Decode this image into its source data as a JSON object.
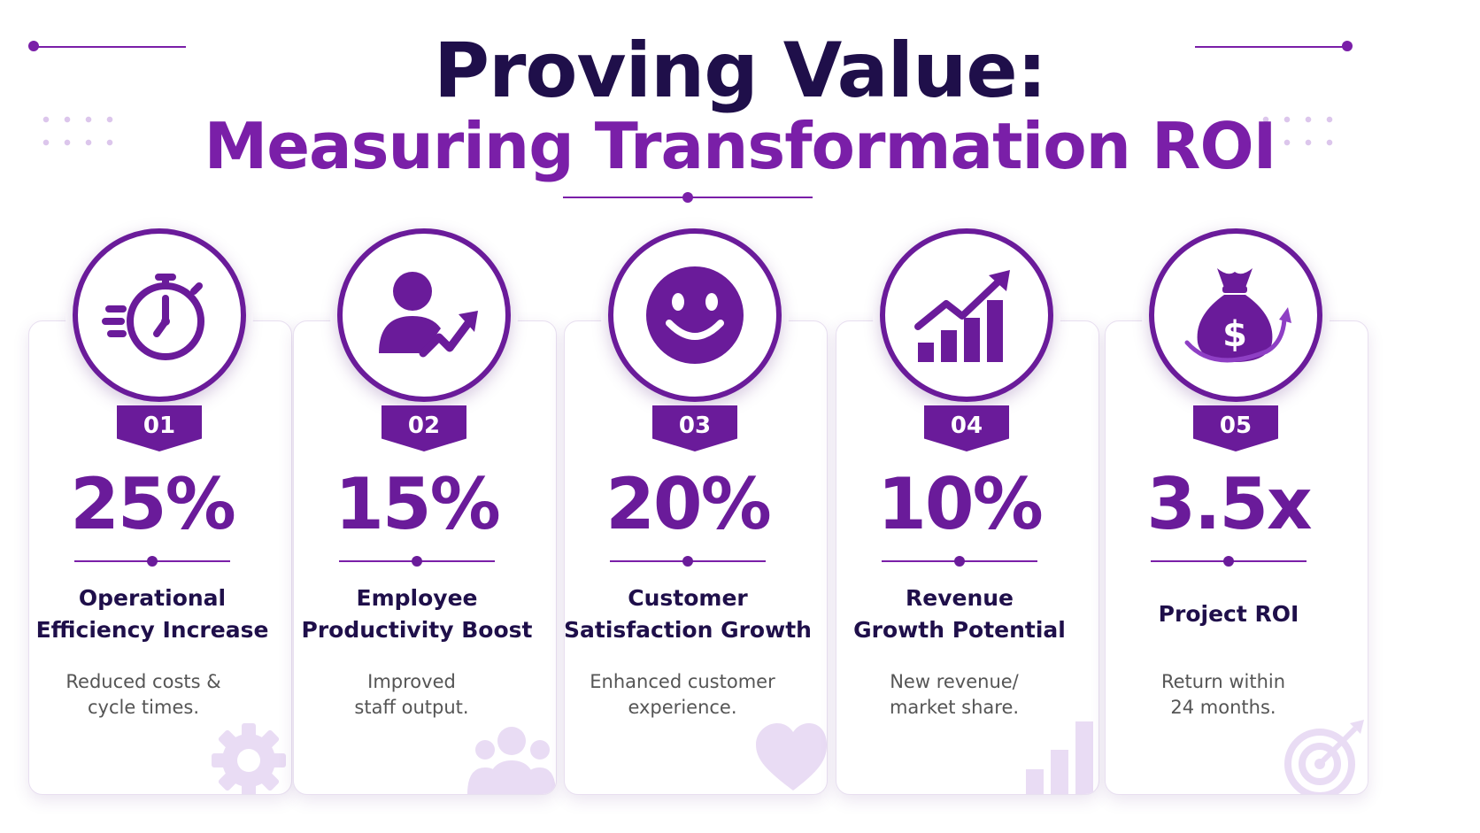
{
  "header": {
    "title_line1": "Proving Value:",
    "title_line2": "Measuring Transformation ROI"
  },
  "colors": {
    "primary": "#6a1b9a",
    "accent": "#7a1fa8",
    "dark": "#1f0f4a",
    "muted_icon": "#e9dcf4"
  },
  "cards": [
    {
      "number": "01",
      "metric": "25%",
      "label_line1": "Operational",
      "label_line2": "Efficiency Increase",
      "desc_line1": "Reduced costs &",
      "desc_line2": "cycle times.",
      "icon": "stopwatch-icon",
      "bg_icon": "gear-icon"
    },
    {
      "number": "02",
      "metric": "15%",
      "label_line1": "Employee",
      "label_line2": "Productivity Boost",
      "desc_line1": "Improved",
      "desc_line2": "staff output.",
      "icon": "person-growth-icon",
      "bg_icon": "people-icon"
    },
    {
      "number": "03",
      "metric": "20%",
      "label_line1": "Customer",
      "label_line2": "Satisfaction Growth",
      "desc_line1": "Enhanced customer",
      "desc_line2": "experience.",
      "icon": "smiley-icon",
      "bg_icon": "heart-icon"
    },
    {
      "number": "04",
      "metric": "10%",
      "label_line1": "Revenue",
      "label_line2": "Growth Potential",
      "desc_line1": "New revenue/",
      "desc_line2": "market share.",
      "icon": "bar-chart-growth-icon",
      "bg_icon": "bar-chart-icon"
    },
    {
      "number": "05",
      "metric": "3.5x",
      "label_line1": "Project ROI",
      "label_line2": "",
      "desc_line1": "Return within",
      "desc_line2": "24 months.",
      "icon": "money-bag-icon",
      "bg_icon": "target-icon"
    }
  ]
}
